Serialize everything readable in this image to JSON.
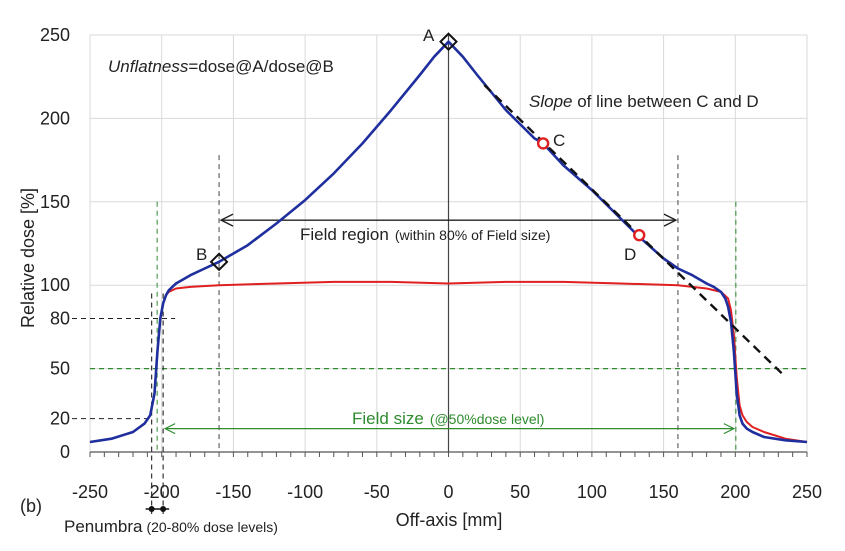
{
  "chart_data": {
    "type": "line",
    "title": "",
    "xlabel": "Off-axis [mm]",
    "ylabel": "Relative dose [%]",
    "xlim": [
      -250,
      250
    ],
    "ylim": [
      0,
      250
    ],
    "x_ticks": [
      -250,
      -200,
      -150,
      -100,
      -50,
      0,
      50,
      100,
      150,
      200,
      250
    ],
    "y_ticks": [
      0,
      50,
      100,
      150,
      200,
      250
    ],
    "y_extra_ticks": [
      20,
      80
    ],
    "grid": true,
    "panel_label": "(b)",
    "series": [
      {
        "color": "#1f2f9e",
        "x": [
          -250,
          -235,
          -220,
          -212,
          -208,
          -205,
          -203,
          -201,
          -199,
          -197,
          -195,
          -190,
          -180,
          -170,
          -160,
          -140,
          -120,
          -100,
          -80,
          -60,
          -40,
          -20,
          -10,
          0,
          10,
          20,
          40,
          60,
          66,
          80,
          100,
          120,
          133,
          150,
          160,
          170,
          180,
          185,
          190,
          193,
          195,
          197,
          199,
          201,
          203,
          205,
          208,
          212,
          220,
          235,
          250
        ],
        "y": [
          6,
          8,
          12,
          17,
          22,
          35,
          60,
          80,
          89,
          94,
          97,
          101,
          106,
          110,
          114,
          124,
          137,
          151,
          167,
          185,
          205,
          226,
          237,
          246,
          237,
          226,
          205,
          188,
          185,
          172,
          157,
          140,
          129,
          116,
          110,
          106,
          101,
          99,
          96,
          92,
          87,
          78,
          60,
          35,
          22,
          17,
          14,
          12,
          9,
          7,
          6
        ]
      },
      {
        "color": "#e02020",
        "x": [
          -250,
          -235,
          -220,
          -212,
          -208,
          -205,
          -203,
          -201,
          -199,
          -197,
          -195,
          -190,
          -180,
          -160,
          -120,
          -80,
          -40,
          0,
          40,
          80,
          120,
          160,
          180,
          190,
          195,
          197,
          199,
          201,
          203,
          205,
          208,
          212,
          220,
          235,
          250
        ],
        "y": [
          6,
          8,
          12,
          17,
          22,
          35,
          60,
          80,
          89,
          94,
          96,
          98,
          99,
          100,
          101,
          102,
          102,
          101,
          102,
          102,
          101,
          100,
          98,
          96,
          92,
          85,
          70,
          45,
          28,
          22,
          18,
          15,
          12,
          8,
          6
        ]
      }
    ],
    "annotations": {
      "unflatness_italic": "Unflatness",
      "unflatness_rest": "=dose@A/dose@B",
      "slope_italic": "Slope",
      "slope_rest": " of line between C and D",
      "field_region_main": "Field region",
      "field_region_sub": "(within 80% of Field size)",
      "field_size_main": "Field size",
      "field_size_sub": "(@50%dose level)",
      "penumbra_main": "Penumbra",
      "penumbra_sub": "(20-80% dose levels)",
      "points": [
        {
          "label": "A",
          "x": 0,
          "y": 246,
          "marker": "diamond"
        },
        {
          "label": "B",
          "x": -160,
          "y": 114,
          "marker": "diamond"
        },
        {
          "label": "C",
          "x": 66,
          "y": 185,
          "marker": "circle"
        },
        {
          "label": "D",
          "x": 133,
          "y": 130,
          "marker": "circle"
        }
      ],
      "slope_line": {
        "x": [
          25,
          235
        ],
        "y": [
          220,
          45
        ]
      },
      "field_region_range": [
        -160,
        160
      ],
      "field_size_range": [
        -199,
        199
      ],
      "penumbra_range": [
        -207,
        -199
      ]
    }
  }
}
